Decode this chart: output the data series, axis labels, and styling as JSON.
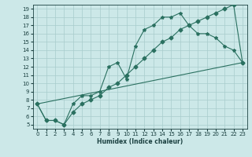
{
  "xlabel": "Humidex (Indice chaleur)",
  "bg_color": "#cce8e8",
  "grid_color": "#a8cccc",
  "line_color": "#2a7060",
  "xlim": [
    -0.5,
    23.5
  ],
  "ylim": [
    4.5,
    19.5
  ],
  "xticks": [
    0,
    1,
    2,
    3,
    4,
    5,
    6,
    7,
    8,
    9,
    10,
    11,
    12,
    13,
    14,
    15,
    16,
    17,
    18,
    19,
    20,
    21,
    22,
    23
  ],
  "yticks": [
    5,
    6,
    7,
    8,
    9,
    10,
    11,
    12,
    13,
    14,
    15,
    16,
    17,
    18,
    19
  ],
  "line1_x": [
    0,
    1,
    2,
    3,
    4,
    5,
    6,
    7,
    8,
    9,
    10,
    11,
    12,
    13,
    14,
    15,
    16,
    17,
    18,
    19,
    20,
    21,
    22,
    23
  ],
  "line1_y": [
    7.5,
    5.5,
    5.5,
    5.0,
    7.5,
    8.5,
    8.5,
    9.0,
    12.0,
    12.5,
    10.5,
    14.5,
    16.5,
    17.0,
    18.0,
    18.0,
    18.5,
    17.0,
    16.0,
    16.0,
    15.5,
    14.5,
    14.0,
    12.5
  ],
  "line2_x": [
    0,
    1,
    2,
    3,
    4,
    5,
    6,
    7,
    8,
    9,
    10,
    11,
    12,
    13,
    14,
    15,
    16,
    17,
    18,
    19,
    20,
    21,
    22,
    23
  ],
  "line2_y": [
    7.5,
    5.5,
    5.5,
    5.0,
    6.5,
    7.5,
    8.0,
    8.5,
    9.5,
    10.0,
    11.0,
    12.0,
    13.0,
    14.0,
    15.0,
    15.5,
    16.5,
    17.0,
    17.5,
    18.0,
    18.5,
    19.0,
    19.5,
    12.5
  ],
  "line3_x": [
    0,
    23
  ],
  "line3_y": [
    7.5,
    12.5
  ],
  "xlabel_fontsize": 5.5,
  "tick_fontsize": 5,
  "lw": 0.8,
  "marker1_size": 3.0,
  "marker2_size": 2.5
}
